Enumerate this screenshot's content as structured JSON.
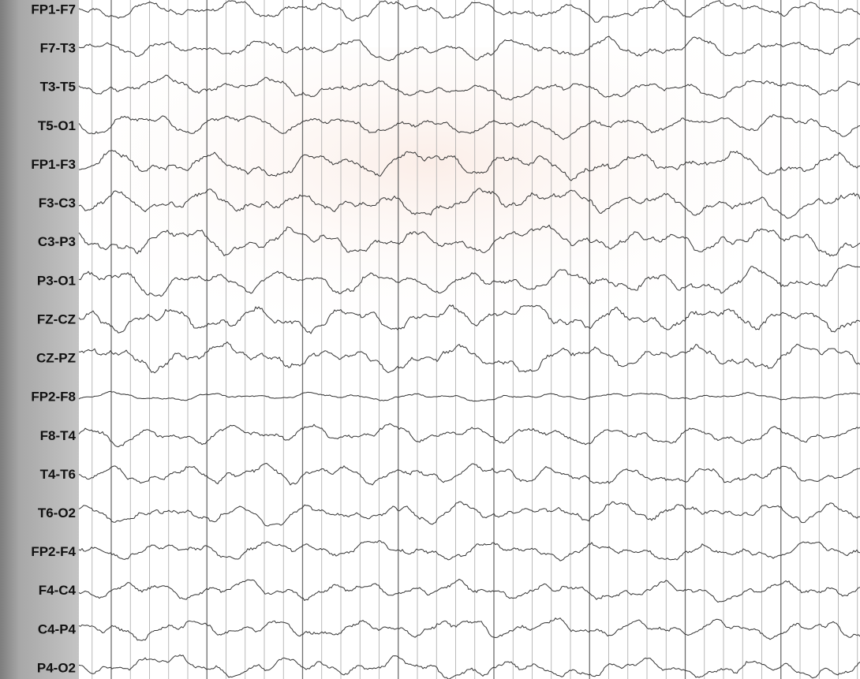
{
  "channels": [
    "FP1-F7",
    "F7-T3",
    "T3-T5",
    "T5-O1",
    "FP1-F3",
    "F3-C3",
    "C3-P3",
    "P3-O1",
    "FZ-CZ",
    "CZ-PZ",
    "FP2-F8",
    "F8-T4",
    "T4-T6",
    "T6-O2",
    "FP2-F4",
    "F4-C4",
    "C4-P4",
    "P4-O2"
  ]
}
